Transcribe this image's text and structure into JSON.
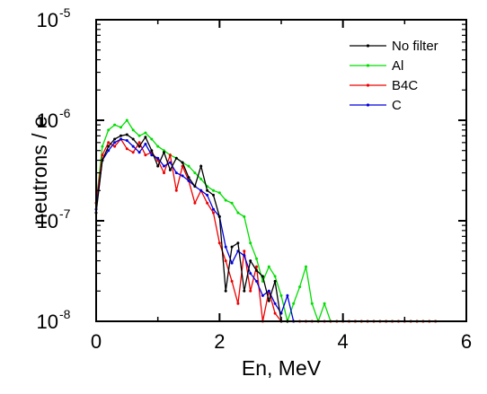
{
  "chart_data": {
    "type": "line",
    "xlabel": "En, MeV",
    "ylabel": "neutrons / e",
    "xlim": [
      0,
      6
    ],
    "ylim": [
      1e-08,
      1e-05
    ],
    "yscale": "log",
    "x_ticks": [
      0,
      2,
      4,
      6
    ],
    "x_tick_labels": [
      "0",
      "2",
      "4",
      "6"
    ],
    "y_ticks": [
      1e-08,
      1e-07,
      1e-06,
      1e-05
    ],
    "y_tick_base": [
      "10",
      "10",
      "10",
      "10"
    ],
    "y_tick_exp": [
      "-8",
      "-7",
      "-6",
      "-5"
    ],
    "grid": false,
    "legend_position": "top-right",
    "series": [
      {
        "name": "No filter",
        "color": "#000000",
        "x": [
          0.0,
          0.1,
          0.2,
          0.3,
          0.4,
          0.5,
          0.6,
          0.7,
          0.8,
          0.9,
          1.0,
          1.1,
          1.2,
          1.3,
          1.4,
          1.5,
          1.6,
          1.7,
          1.8,
          1.9,
          2.0,
          2.1,
          2.2,
          2.3,
          2.4,
          2.5,
          2.6,
          2.7,
          2.8,
          2.9,
          3.0,
          3.1
        ],
        "y": [
          1.2e-07,
          4e-07,
          5.5e-07,
          6.5e-07,
          7e-07,
          7.2e-07,
          6.5e-07,
          5.5e-07,
          6.8e-07,
          5e-07,
          3.5e-07,
          4.8e-07,
          3.2e-07,
          4.2e-07,
          3.8e-07,
          2.7e-07,
          2.2e-07,
          3.5e-07,
          2e-07,
          1.8e-07,
          1.1e-07,
          2e-08,
          5.5e-08,
          6e-08,
          2e-08,
          4e-08,
          3.2e-08,
          2.8e-08,
          1.6e-08,
          2.5e-08,
          1e-08,
          1e-08
        ]
      },
      {
        "name": "Al",
        "color": "#00dd00",
        "x": [
          0.0,
          0.1,
          0.2,
          0.3,
          0.4,
          0.5,
          0.6,
          0.7,
          0.8,
          0.9,
          1.0,
          1.1,
          1.2,
          1.3,
          1.4,
          1.5,
          1.6,
          1.7,
          1.8,
          1.9,
          2.0,
          2.1,
          2.2,
          2.3,
          2.4,
          2.5,
          2.6,
          2.7,
          2.8,
          2.9,
          3.0,
          3.1,
          3.2,
          3.3,
          3.4,
          3.5,
          3.6,
          3.7,
          3.8,
          3.9,
          4.0,
          4.1,
          4.2,
          4.3,
          4.4,
          4.5,
          4.6,
          4.7,
          4.8,
          4.9,
          5.0,
          5.1,
          5.2,
          5.3,
          5.4,
          5.5
        ],
        "y": [
          1.5e-07,
          5.5e-07,
          8e-07,
          9e-07,
          8.5e-07,
          1e-06,
          8e-07,
          7e-07,
          7.5e-07,
          6.5e-07,
          5.5e-07,
          5e-07,
          4.5e-07,
          4.2e-07,
          3.8e-07,
          3.5e-07,
          3e-07,
          2.6e-07,
          2.2e-07,
          2e-07,
          1.9e-07,
          1.6e-07,
          1.5e-07,
          1.2e-07,
          1.1e-07,
          6e-08,
          4.2e-08,
          2.5e-08,
          3.5e-08,
          2.8e-08,
          1.8e-08,
          1e-08,
          1.5e-08,
          2.2e-08,
          3.5e-08,
          1.5e-08,
          1e-08,
          1.5e-08,
          1e-08,
          1e-08,
          1e-08,
          1e-08,
          1e-08,
          1e-08,
          1e-08,
          1e-08,
          1e-08,
          1e-08,
          1e-08,
          1e-08,
          1e-08,
          1e-08,
          1e-08,
          1e-08,
          1e-08,
          1e-08
        ]
      },
      {
        "name": "B4C",
        "color": "#ee0000",
        "x": [
          0.0,
          0.1,
          0.2,
          0.3,
          0.4,
          0.5,
          0.6,
          0.7,
          0.8,
          0.9,
          1.0,
          1.1,
          1.2,
          1.3,
          1.4,
          1.5,
          1.6,
          1.7,
          1.8,
          1.9,
          2.0,
          2.1,
          2.2,
          2.3,
          2.4,
          2.5,
          2.6,
          2.7,
          2.8,
          2.9,
          3.0,
          3.1,
          3.2,
          3.3,
          3.4,
          3.5,
          3.6,
          3.7,
          3.8,
          3.9,
          4.0,
          4.1,
          4.2,
          4.3,
          4.4,
          4.5,
          4.6,
          4.7,
          4.8,
          4.9,
          5.0,
          5.1,
          5.2,
          5.3,
          5.4,
          5.5
        ],
        "y": [
          1.5e-07,
          4.5e-07,
          6e-07,
          5.5e-07,
          6.5e-07,
          5.2e-07,
          4.8e-07,
          6e-07,
          4.5e-07,
          4.8e-07,
          4e-07,
          3e-07,
          4.5e-07,
          2e-07,
          3.5e-07,
          2.5e-07,
          1.5e-07,
          2e-07,
          1.5e-07,
          1.2e-07,
          6e-08,
          4e-08,
          2.5e-08,
          1.5e-08,
          5e-08,
          2e-08,
          3.5e-08,
          1e-08,
          2e-08,
          1.2e-08,
          1e-08,
          1e-08,
          1e-08,
          1e-08,
          1e-08,
          1e-08,
          1e-08,
          1e-08,
          1e-08,
          1e-08,
          1e-08,
          1e-08,
          1e-08,
          1e-08,
          1e-08,
          1e-08,
          1e-08,
          1e-08,
          1e-08,
          1e-08,
          1e-08,
          1e-08,
          1e-08,
          1e-08,
          1e-08,
          1e-08
        ]
      },
      {
        "name": "C",
        "color": "#0000dd",
        "x": [
          0.0,
          0.1,
          0.2,
          0.3,
          0.4,
          0.5,
          0.6,
          0.7,
          0.8,
          0.9,
          1.0,
          1.1,
          1.2,
          1.3,
          1.4,
          1.5,
          1.6,
          1.7,
          1.8,
          1.9,
          2.0,
          2.1,
          2.2,
          2.3,
          2.4,
          2.5,
          2.6,
          2.7,
          2.8,
          2.9,
          3.0,
          3.1,
          3.2
        ],
        "y": [
          1.3e-07,
          4e-07,
          5e-07,
          6e-07,
          6.5e-07,
          6.3e-07,
          5.5e-07,
          4.8e-07,
          5.8e-07,
          4.5e-07,
          4.2e-07,
          3.5e-07,
          3.8e-07,
          3e-07,
          2.8e-07,
          2.5e-07,
          2.2e-07,
          2e-07,
          1.8e-07,
          1.3e-07,
          1.1e-07,
          5.5e-08,
          3.8e-08,
          5e-08,
          4.5e-08,
          3e-08,
          2.5e-08,
          1.8e-08,
          2e-08,
          1.5e-08,
          1.2e-08,
          1.8e-08,
          1e-08
        ]
      }
    ]
  }
}
